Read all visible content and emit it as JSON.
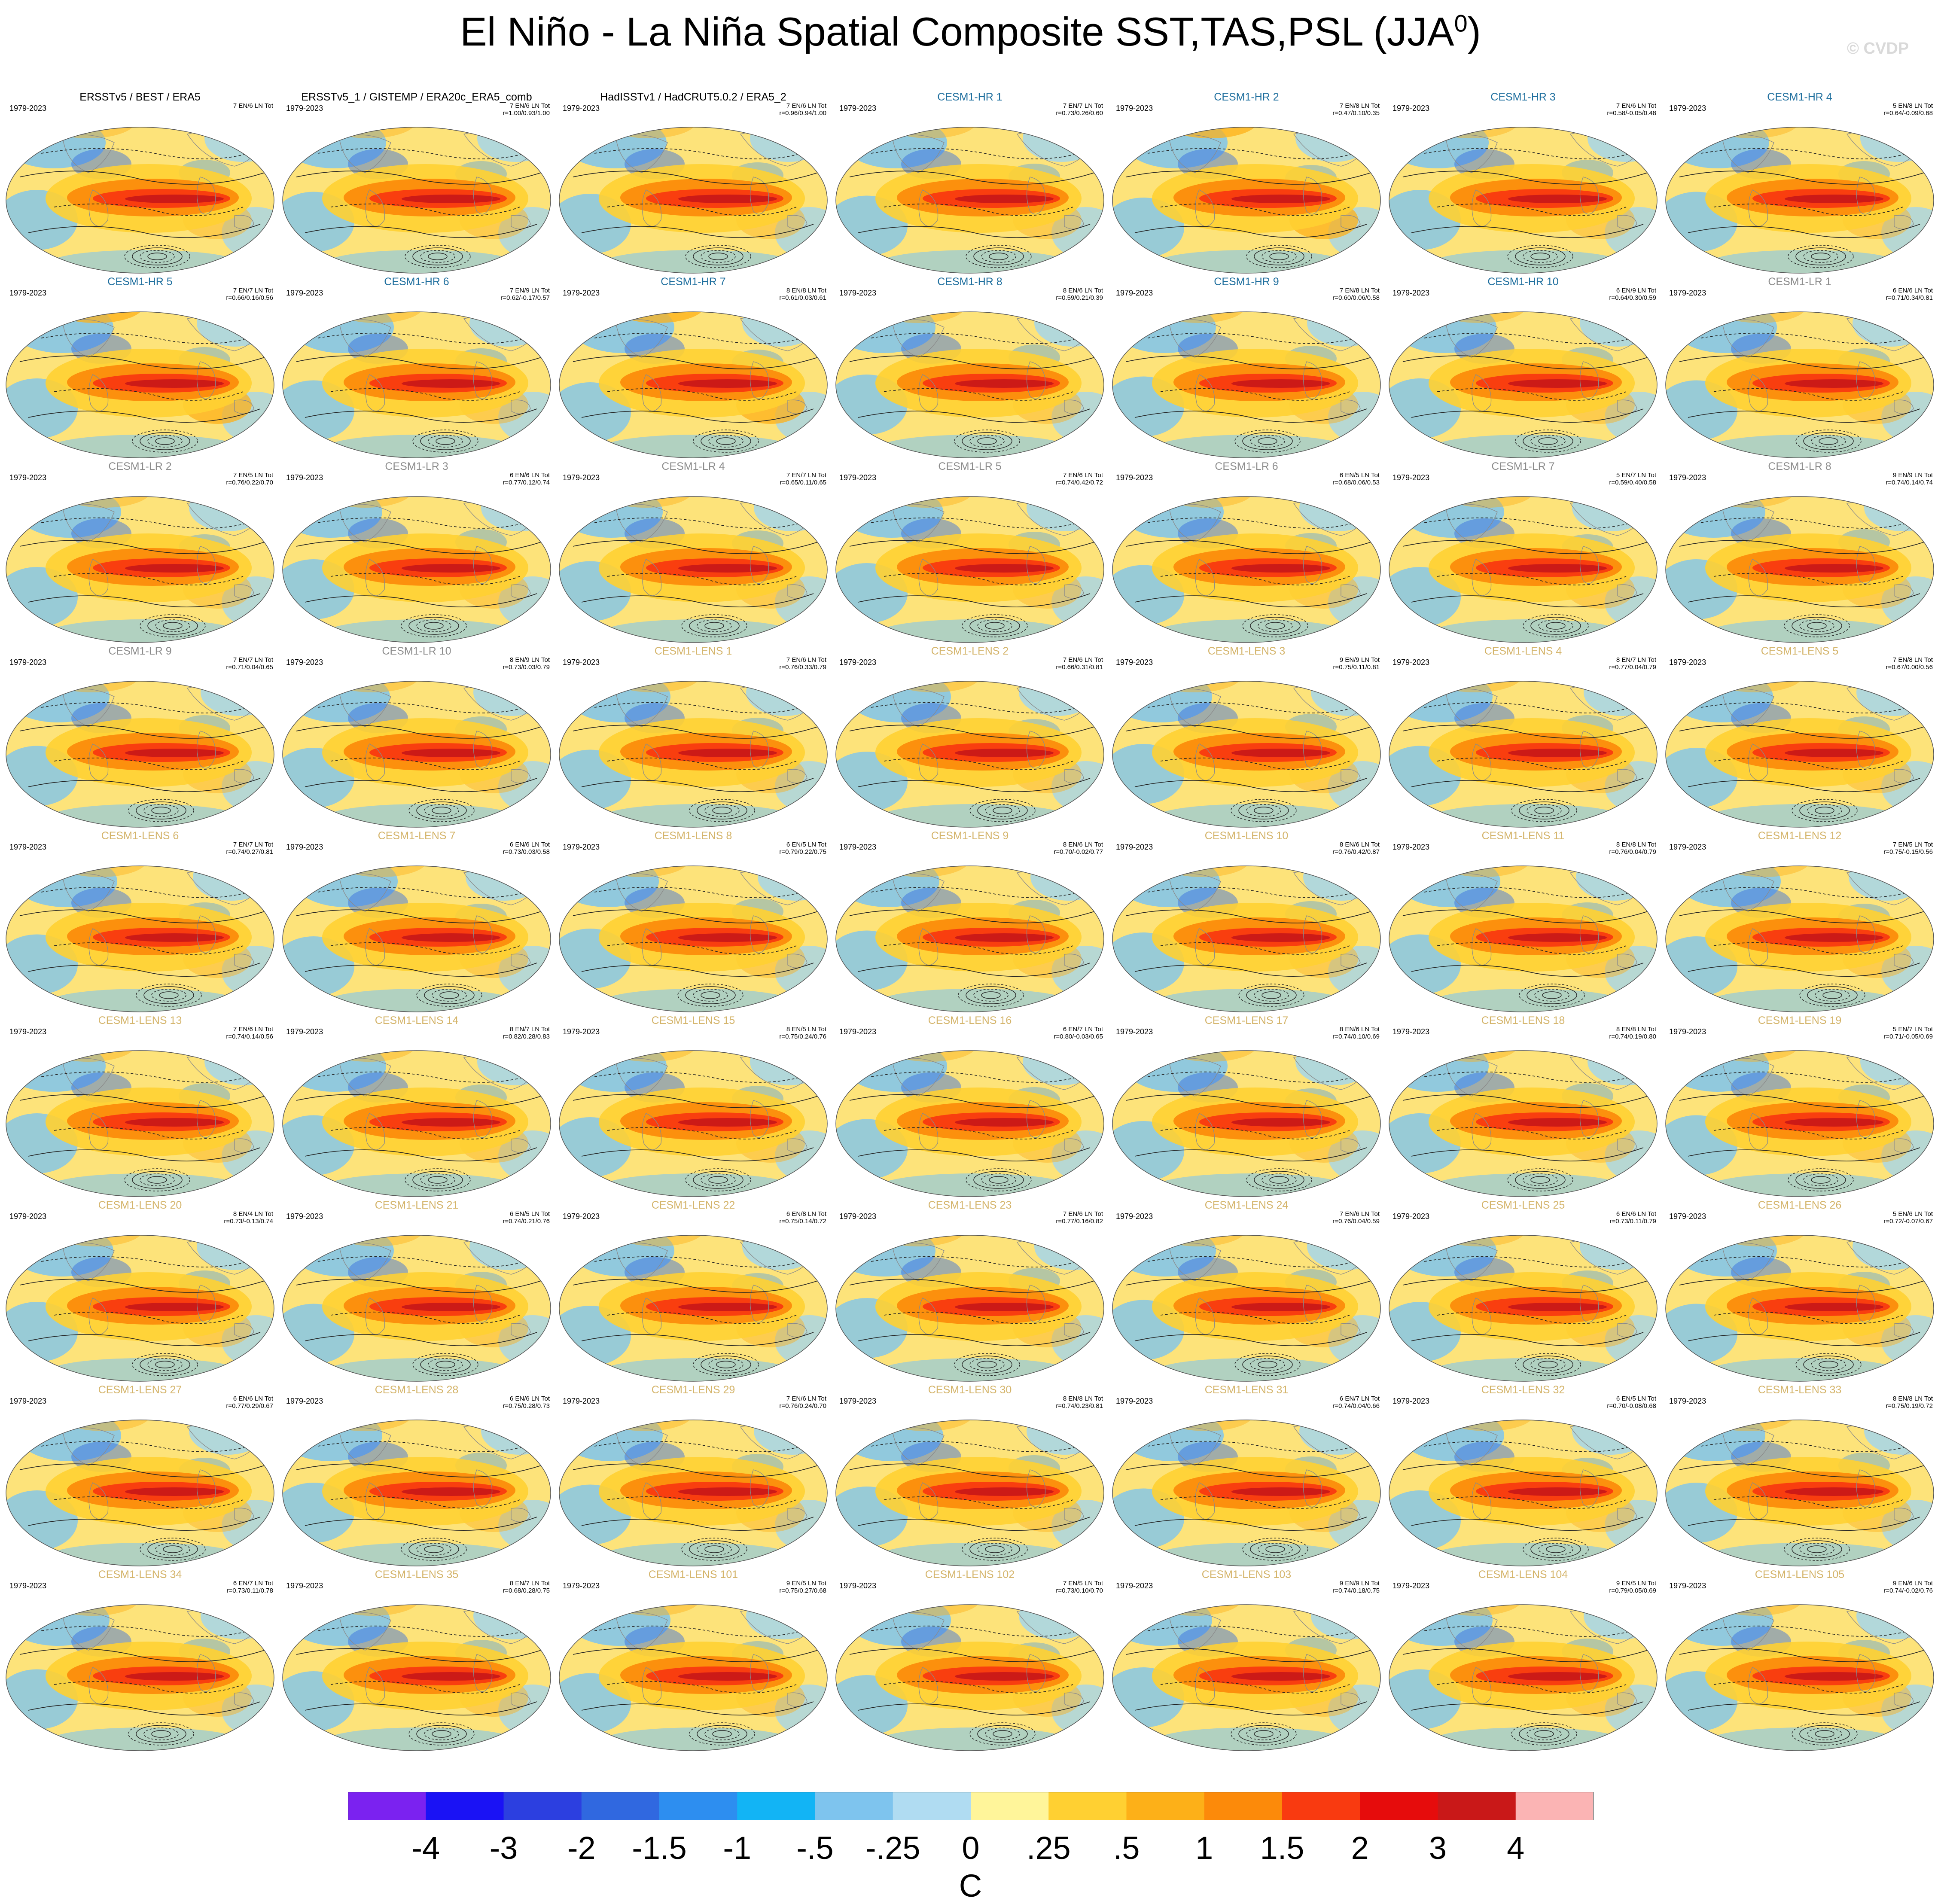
{
  "title": "El Niño - La Niña Spatial Composite SST,TAS,PSL (JJA",
  "title_sup": "0",
  "title_close": ")",
  "watermark": "© CVDP",
  "colors": {
    "obs_title": "#000000",
    "hr_title": "#1f6f9e",
    "lr_title": "#8c8c8c",
    "lens_title": "#d4b46a"
  },
  "panels": [
    {
      "title": "ERSSTv5 / BEST / ERA5",
      "group": "obs",
      "period": "1979-2023",
      "counts": "7 EN/6 LN Tot",
      "r": ""
    },
    {
      "title": "ERSSTv5_1 / GISTEMP / ERA20c_ERA5_comb",
      "group": "obs",
      "period": "1979-2023",
      "counts": "7 EN/6 LN Tot",
      "r": "r=1.00/0.93/1.00"
    },
    {
      "title": "HadISSTv1 / HadCRUT5.0.2 / ERA5_2",
      "group": "obs",
      "period": "1979-2023",
      "counts": "7 EN/6 LN Tot",
      "r": "r=0.96/0.94/1.00"
    },
    {
      "title": "CESM1-HR 1",
      "group": "hr",
      "period": "1979-2023",
      "counts": "7 EN/7 LN Tot",
      "r": "r=0.73/0.26/0.60"
    },
    {
      "title": "CESM1-HR 2",
      "group": "hr",
      "period": "1979-2023",
      "counts": "7 EN/8 LN Tot",
      "r": "r=0.47/0.10/0.35"
    },
    {
      "title": "CESM1-HR 3",
      "group": "hr",
      "period": "1979-2023",
      "counts": "7 EN/6 LN Tot",
      "r": "r=0.58/-0.05/0.48"
    },
    {
      "title": "CESM1-HR 4",
      "group": "hr",
      "period": "1979-2023",
      "counts": "5 EN/8 LN Tot",
      "r": "r=0.64/-0.09/0.68"
    },
    {
      "title": "CESM1-HR 5",
      "group": "hr",
      "period": "1979-2023",
      "counts": "7 EN/7 LN Tot",
      "r": "r=0.66/0.16/0.56"
    },
    {
      "title": "CESM1-HR 6",
      "group": "hr",
      "period": "1979-2023",
      "counts": "7 EN/9 LN Tot",
      "r": "r=0.62/-0.17/0.57"
    },
    {
      "title": "CESM1-HR 7",
      "group": "hr",
      "period": "1979-2023",
      "counts": "8 EN/8 LN Tot",
      "r": "r=0.61/0.03/0.61"
    },
    {
      "title": "CESM1-HR 8",
      "group": "hr",
      "period": "1979-2023",
      "counts": "8 EN/6 LN Tot",
      "r": "r=0.59/0.21/0.39"
    },
    {
      "title": "CESM1-HR 9",
      "group": "hr",
      "period": "1979-2023",
      "counts": "7 EN/8 LN Tot",
      "r": "r=0.60/0.06/0.58"
    },
    {
      "title": "CESM1-HR 10",
      "group": "hr",
      "period": "1979-2023",
      "counts": "6 EN/9 LN Tot",
      "r": "r=0.64/0.30/0.59"
    },
    {
      "title": "CESM1-LR 1",
      "group": "lr",
      "period": "1979-2023",
      "counts": "6 EN/6 LN Tot",
      "r": "r=0.71/0.34/0.81"
    },
    {
      "title": "CESM1-LR 2",
      "group": "lr",
      "period": "1979-2023",
      "counts": "7 EN/5 LN Tot",
      "r": "r=0.76/0.22/0.70"
    },
    {
      "title": "CESM1-LR 3",
      "group": "lr",
      "period": "1979-2023",
      "counts": "6 EN/6 LN Tot",
      "r": "r=0.77/0.12/0.74"
    },
    {
      "title": "CESM1-LR 4",
      "group": "lr",
      "period": "1979-2023",
      "counts": "7 EN/7 LN Tot",
      "r": "r=0.65/0.11/0.65"
    },
    {
      "title": "CESM1-LR 5",
      "group": "lr",
      "period": "1979-2023",
      "counts": "7 EN/6 LN Tot",
      "r": "r=0.74/0.42/0.72"
    },
    {
      "title": "CESM1-LR 6",
      "group": "lr",
      "period": "1979-2023",
      "counts": "6 EN/5 LN Tot",
      "r": "r=0.68/0.06/0.53"
    },
    {
      "title": "CESM1-LR 7",
      "group": "lr",
      "period": "1979-2023",
      "counts": "5 EN/7 LN Tot",
      "r": "r=0.59/0.40/0.58"
    },
    {
      "title": "CESM1-LR 8",
      "group": "lr",
      "period": "1979-2023",
      "counts": "9 EN/9 LN Tot",
      "r": "r=0.74/0.14/0.74"
    },
    {
      "title": "CESM1-LR 9",
      "group": "lr",
      "period": "1979-2023",
      "counts": "7 EN/7 LN Tot",
      "r": "r=0.71/0.04/0.65"
    },
    {
      "title": "CESM1-LR 10",
      "group": "lr",
      "period": "1979-2023",
      "counts": "8 EN/9 LN Tot",
      "r": "r=0.73/0.03/0.79"
    },
    {
      "title": "CESM1-LENS 1",
      "group": "lens",
      "period": "1979-2023",
      "counts": "7 EN/6 LN Tot",
      "r": "r=0.76/0.33/0.79"
    },
    {
      "title": "CESM1-LENS 2",
      "group": "lens",
      "period": "1979-2023",
      "counts": "7 EN/6 LN Tot",
      "r": "r=0.66/0.31/0.81"
    },
    {
      "title": "CESM1-LENS 3",
      "group": "lens",
      "period": "1979-2023",
      "counts": "9 EN/9 LN Tot",
      "r": "r=0.75/0.11/0.81"
    },
    {
      "title": "CESM1-LENS 4",
      "group": "lens",
      "period": "1979-2023",
      "counts": "8 EN/7 LN Tot",
      "r": "r=0.77/0.04/0.79"
    },
    {
      "title": "CESM1-LENS 5",
      "group": "lens",
      "period": "1979-2023",
      "counts": "7 EN/8 LN Tot",
      "r": "r=0.67/0.00/0.56"
    },
    {
      "title": "CESM1-LENS 6",
      "group": "lens",
      "period": "1979-2023",
      "counts": "7 EN/7 LN Tot",
      "r": "r=0.74/0.27/0.81"
    },
    {
      "title": "CESM1-LENS 7",
      "group": "lens",
      "period": "1979-2023",
      "counts": "6 EN/6 LN Tot",
      "r": "r=0.73/0.03/0.58"
    },
    {
      "title": "CESM1-LENS 8",
      "group": "lens",
      "period": "1979-2023",
      "counts": "6 EN/5 LN Tot",
      "r": "r=0.79/0.22/0.75"
    },
    {
      "title": "CESM1-LENS 9",
      "group": "lens",
      "period": "1979-2023",
      "counts": "8 EN/6 LN Tot",
      "r": "r=0.70/-0.02/0.77"
    },
    {
      "title": "CESM1-LENS 10",
      "group": "lens",
      "period": "1979-2023",
      "counts": "8 EN/6 LN Tot",
      "r": "r=0.76/0.42/0.87"
    },
    {
      "title": "CESM1-LENS 11",
      "group": "lens",
      "period": "1979-2023",
      "counts": "8 EN/8 LN Tot",
      "r": "r=0.76/0.04/0.79"
    },
    {
      "title": "CESM1-LENS 12",
      "group": "lens",
      "period": "1979-2023",
      "counts": "7 EN/5 LN Tot",
      "r": "r=0.75/-0.15/0.56"
    },
    {
      "title": "CESM1-LENS 13",
      "group": "lens",
      "period": "1979-2023",
      "counts": "7 EN/6 LN Tot",
      "r": "r=0.74/0.14/0.56"
    },
    {
      "title": "CESM1-LENS 14",
      "group": "lens",
      "period": "1979-2023",
      "counts": "8 EN/7 LN Tot",
      "r": "r=0.82/0.28/0.83"
    },
    {
      "title": "CESM1-LENS 15",
      "group": "lens",
      "period": "1979-2023",
      "counts": "8 EN/5 LN Tot",
      "r": "r=0.75/0.24/0.76"
    },
    {
      "title": "CESM1-LENS 16",
      "group": "lens",
      "period": "1979-2023",
      "counts": "6 EN/7 LN Tot",
      "r": "r=0.80/-0.03/0.65"
    },
    {
      "title": "CESM1-LENS 17",
      "group": "lens",
      "period": "1979-2023",
      "counts": "8 EN/6 LN Tot",
      "r": "r=0.74/0.10/0.69"
    },
    {
      "title": "CESM1-LENS 18",
      "group": "lens",
      "period": "1979-2023",
      "counts": "8 EN/8 LN Tot",
      "r": "r=0.74/0.19/0.80"
    },
    {
      "title": "CESM1-LENS 19",
      "group": "lens",
      "period": "1979-2023",
      "counts": "5 EN/7 LN Tot",
      "r": "r=0.71/-0.05/0.69"
    },
    {
      "title": "CESM1-LENS 20",
      "group": "lens",
      "period": "1979-2023",
      "counts": "8 EN/4 LN Tot",
      "r": "r=0.73/-0.13/0.74"
    },
    {
      "title": "CESM1-LENS 21",
      "group": "lens",
      "period": "1979-2023",
      "counts": "6 EN/5 LN Tot",
      "r": "r=0.74/0.21/0.76"
    },
    {
      "title": "CESM1-LENS 22",
      "group": "lens",
      "period": "1979-2023",
      "counts": "6 EN/8 LN Tot",
      "r": "r=0.75/0.14/0.72"
    },
    {
      "title": "CESM1-LENS 23",
      "group": "lens",
      "period": "1979-2023",
      "counts": "7 EN/6 LN Tot",
      "r": "r=0.77/0.16/0.82"
    },
    {
      "title": "CESM1-LENS 24",
      "group": "lens",
      "period": "1979-2023",
      "counts": "7 EN/6 LN Tot",
      "r": "r=0.76/0.04/0.59"
    },
    {
      "title": "CESM1-LENS 25",
      "group": "lens",
      "period": "1979-2023",
      "counts": "6 EN/6 LN Tot",
      "r": "r=0.73/0.11/0.79"
    },
    {
      "title": "CESM1-LENS 26",
      "group": "lens",
      "period": "1979-2023",
      "counts": "5 EN/6 LN Tot",
      "r": "r=0.72/-0.07/0.67"
    },
    {
      "title": "CESM1-LENS 27",
      "group": "lens",
      "period": "1979-2023",
      "counts": "6 EN/6 LN Tot",
      "r": "r=0.77/0.29/0.67"
    },
    {
      "title": "CESM1-LENS 28",
      "group": "lens",
      "period": "1979-2023",
      "counts": "6 EN/6 LN Tot",
      "r": "r=0.75/0.28/0.73"
    },
    {
      "title": "CESM1-LENS 29",
      "group": "lens",
      "period": "1979-2023",
      "counts": "7 EN/6 LN Tot",
      "r": "r=0.76/0.24/0.70"
    },
    {
      "title": "CESM1-LENS 30",
      "group": "lens",
      "period": "1979-2023",
      "counts": "8 EN/8 LN Tot",
      "r": "r=0.74/0.23/0.81"
    },
    {
      "title": "CESM1-LENS 31",
      "group": "lens",
      "period": "1979-2023",
      "counts": "6 EN/7 LN Tot",
      "r": "r=0.74/0.04/0.66"
    },
    {
      "title": "CESM1-LENS 32",
      "group": "lens",
      "period": "1979-2023",
      "counts": "6 EN/5 LN Tot",
      "r": "r=0.70/-0.08/0.68"
    },
    {
      "title": "CESM1-LENS 33",
      "group": "lens",
      "period": "1979-2023",
      "counts": "8 EN/8 LN Tot",
      "r": "r=0.75/0.19/0.72"
    },
    {
      "title": "CESM1-LENS 34",
      "group": "lens",
      "period": "1979-2023",
      "counts": "6 EN/7 LN Tot",
      "r": "r=0.73/0.11/0.78"
    },
    {
      "title": "CESM1-LENS 35",
      "group": "lens",
      "period": "1979-2023",
      "counts": "8 EN/7 LN Tot",
      "r": "r=0.68/0.28/0.75"
    },
    {
      "title": "CESM1-LENS 101",
      "group": "lens",
      "period": "1979-2023",
      "counts": "9 EN/5 LN Tot",
      "r": "r=0.75/0.27/0.68"
    },
    {
      "title": "CESM1-LENS 102",
      "group": "lens",
      "period": "1979-2023",
      "counts": "7 EN/5 LN Tot",
      "r": "r=0.73/0.10/0.70"
    },
    {
      "title": "CESM1-LENS 103",
      "group": "lens",
      "period": "1979-2023",
      "counts": "9 EN/9 LN Tot",
      "r": "r=0.74/0.18/0.75"
    },
    {
      "title": "CESM1-LENS 104",
      "group": "lens",
      "period": "1979-2023",
      "counts": "9 EN/5 LN Tot",
      "r": "r=0.79/0.05/0.69"
    },
    {
      "title": "CESM1-LENS 105",
      "group": "lens",
      "period": "1979-2023",
      "counts": "9 EN/6 LN Tot",
      "r": "r=0.74/-0.02/0.76"
    }
  ],
  "colorbar": {
    "labels": [
      "-4",
      "-3",
      "-2",
      "-1.5",
      "-1",
      "-.5",
      "-.25",
      "0",
      ".25",
      ".5",
      "1",
      "1.5",
      "2",
      "3",
      "4"
    ],
    "colors": [
      "#7b22f0",
      "#1a12f5",
      "#2c3fe0",
      "#3068e0",
      "#2d8ef0",
      "#12b4f5",
      "#7ec4ee",
      "#b0dcf2",
      "#fff59a",
      "#ffd032",
      "#fdb018",
      "#fc8a0a",
      "#f93a10",
      "#e60c0c",
      "#c91818",
      "#fbb4b4"
    ],
    "unit": "C"
  }
}
